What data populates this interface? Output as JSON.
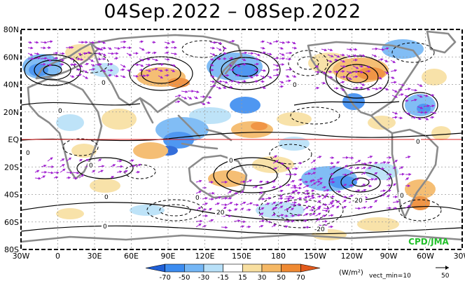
{
  "title": "04Sep.2022 – 08Sep.2022",
  "credit": "CPD/JMA",
  "lat_labels": [
    "80N",
    "60N",
    "40N",
    "20N",
    "EQ",
    "20S",
    "40S",
    "60S",
    "80S"
  ],
  "lon_labels": [
    "30W",
    "0",
    "30E",
    "60E",
    "90E",
    "120E",
    "150E",
    "180",
    "150W",
    "120W",
    "90W",
    "60W",
    "30W"
  ],
  "legend": {
    "ticks": [
      "-70",
      "-50",
      "-30",
      "-15",
      "15",
      "30",
      "50",
      "70"
    ],
    "colors": [
      "#1f5fd6",
      "#3c8cf0",
      "#74b6f5",
      "#b8e0f8",
      "#ffffff",
      "#f8dfa0",
      "#f5b865",
      "#ef8a33",
      "#e25a1c"
    ],
    "unit": "(W/m²)",
    "vect_min": "vect_min=10",
    "ref_vector": "50"
  },
  "contour_labels": [
    "0",
    "0",
    "0",
    "0",
    "0",
    "0",
    "0",
    "0",
    "0",
    "0",
    "0",
    "20",
    "-20",
    "-20"
  ]
}
